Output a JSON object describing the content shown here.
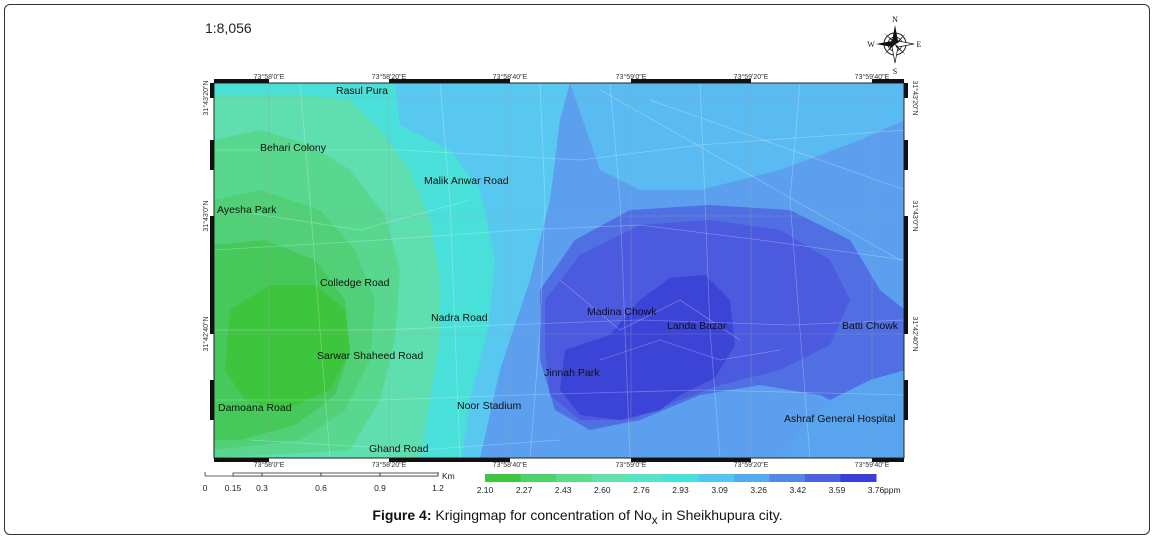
{
  "scale_ratio": "1:8,056",
  "compass": {
    "n": "N",
    "s": "S",
    "e": "E",
    "w": "W"
  },
  "coords_x": [
    "73°58'0\"E",
    "73°58'20\"E",
    "73°58'40\"E",
    "73°59'0\"E",
    "73°59'20\"E",
    "73°59'40\"E"
  ],
  "coords_y": [
    "31°43'20\"N",
    "31°43'0\"N",
    "31°42'40\"N"
  ],
  "places": {
    "rasul_pura": "Rasul Pura",
    "behari_colony": "Behari Colony",
    "malik_anwar_road": "Malik Anwar Road",
    "ayesha_park": "Ayesha Park",
    "colledge_road": "Colledge Road",
    "nadra_road": "Nadra Road",
    "madina_chowk": "Madina Chowk",
    "landa_bazar": "Landa Bazar",
    "batti_chowk": "Batti Chowk",
    "sarwar_shaheed_road": "Sarwar Shaheed Road",
    "jinnah_park": "Jinnah Park",
    "damoana_road": "Damoana Road",
    "noor_stadium": "Noor Stadium",
    "ashraf_general_hospital": "Ashraf General Hospital",
    "ghand_road": "Ghand Road"
  },
  "scale_bar": {
    "unit": "Km",
    "ticks": [
      "0",
      "0.15",
      "0.3",
      "0.6",
      "0.9",
      "1.2"
    ]
  },
  "legend": {
    "unit": "ppm",
    "breaks": [
      "2.10",
      "2.27",
      "2.43",
      "2.60",
      "2.76",
      "2.93",
      "3.09",
      "3.26",
      "3.42",
      "3.59",
      "3.76"
    ],
    "colors": [
      "#3ec73e",
      "#4fd26a",
      "#5edb8c",
      "#66e0aa",
      "#58e3c8",
      "#48e1da",
      "#55c4f2",
      "#56aaee",
      "#5486e6",
      "#4c62dc",
      "#3a3fd6"
    ]
  },
  "caption": {
    "label": "Figure 4:",
    "text_before": " Krigingmap for concentration of No",
    "subscript": "x",
    "text_after": " in Sheikhupura city."
  }
}
